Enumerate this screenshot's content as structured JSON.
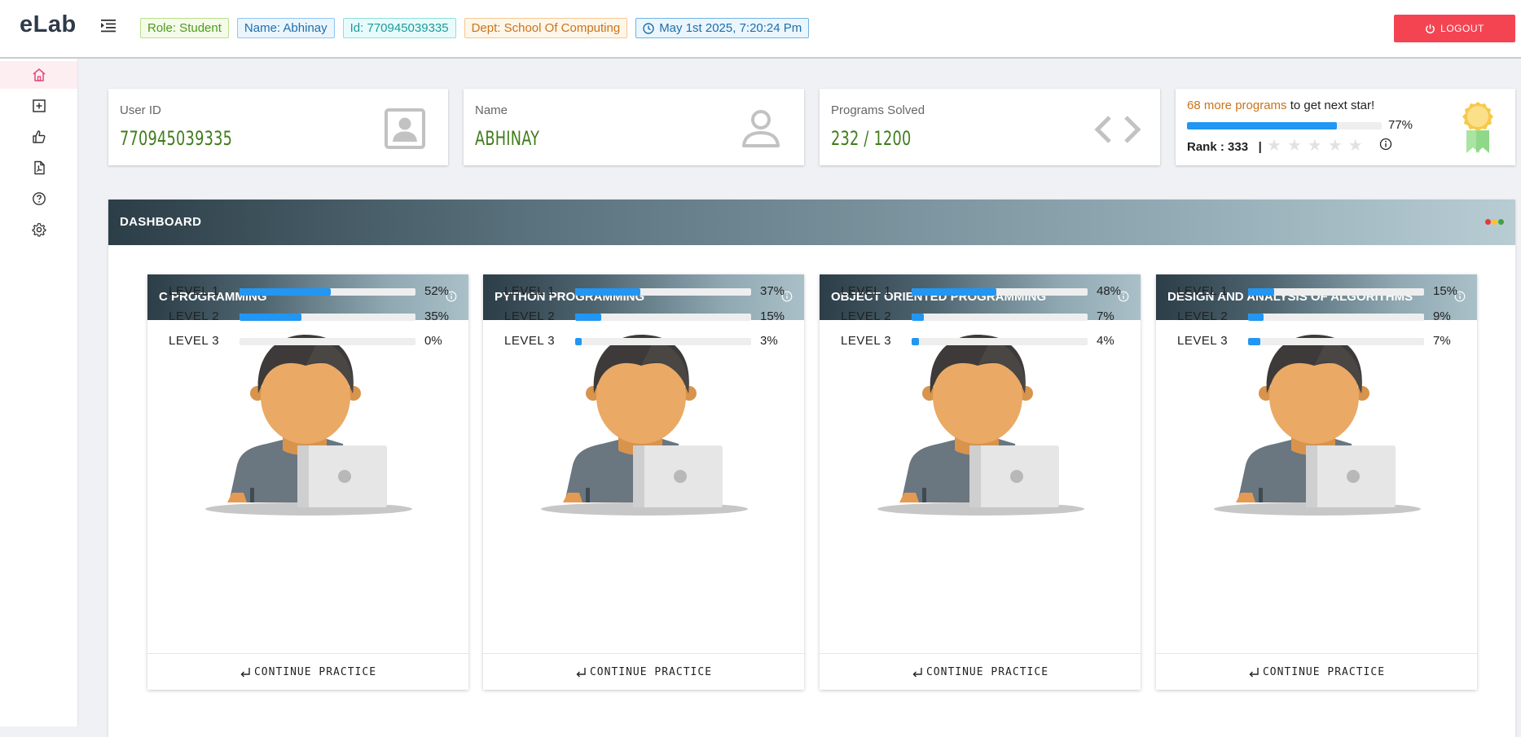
{
  "app": {
    "logo": "eLab"
  },
  "header": {
    "tags": {
      "role": "Role: Student",
      "name": "Name: Abhinay",
      "id": "Id: 770945039335",
      "dept": "Dept: School Of Computing",
      "datetime": "May 1st 2025, 7:20:24 Pm"
    },
    "logout_label": "LOGOUT"
  },
  "sidebar": {
    "items": [
      {
        "icon": "home-icon",
        "active": true
      },
      {
        "icon": "add-square-icon"
      },
      {
        "icon": "thumbs-up-icon"
      },
      {
        "icon": "pdf-file-icon"
      },
      {
        "icon": "help-circle-icon"
      },
      {
        "icon": "gear-icon"
      }
    ]
  },
  "stats": {
    "user_id": {
      "label": "User ID",
      "value": "770945039335",
      "icon": "id-card-icon"
    },
    "name": {
      "label": "Name",
      "value": "ABHINAY",
      "icon": "user-icon"
    },
    "programs": {
      "label": "Programs Solved",
      "value": "232 / 1200",
      "icon": "code-brackets-icon"
    },
    "star": {
      "highlight": "68 more programs",
      "message_rest": " to get next star!",
      "progress": 0.77,
      "percent_label": "77%",
      "rank_label": "Rank : 333",
      "separator": "|",
      "stars_filled": 0,
      "stars_total": 5,
      "icon": "medal-icon"
    }
  },
  "dashboard": {
    "title": "DASHBOARD",
    "continue_label": "CONTINUE PRACTICE",
    "courses": [
      {
        "title": "C PROGRAMMING",
        "levels": [
          {
            "name": "LEVEL 1",
            "value": 0.52,
            "label": "52%"
          },
          {
            "name": "LEVEL 2",
            "value": 0.35,
            "label": "35%"
          },
          {
            "name": "LEVEL 3",
            "value": 0.0,
            "label": "0%"
          }
        ]
      },
      {
        "title": "PYTHON PROGRAMMING",
        "levels": [
          {
            "name": "LEVEL 1",
            "value": 0.37,
            "label": "37%"
          },
          {
            "name": "LEVEL 2",
            "value": 0.15,
            "label": "15%"
          },
          {
            "name": "LEVEL 3",
            "value": 0.03,
            "label": "3%"
          }
        ]
      },
      {
        "title": "OBJECT ORIENTED PROGRAMMING",
        "levels": [
          {
            "name": "LEVEL 1",
            "value": 0.48,
            "label": "48%"
          },
          {
            "name": "LEVEL 2",
            "value": 0.07,
            "label": "7%"
          },
          {
            "name": "LEVEL 3",
            "value": 0.04,
            "label": "4%"
          }
        ]
      },
      {
        "title": "DESIGN AND ANALYSIS OF ALGORITHMS",
        "levels": [
          {
            "name": "LEVEL 1",
            "value": 0.15,
            "label": "15%"
          },
          {
            "name": "LEVEL 2",
            "value": 0.09,
            "label": "9%"
          },
          {
            "name": "LEVEL 3",
            "value": 0.07,
            "label": "7%"
          }
        ]
      }
    ]
  },
  "colors": {
    "accent_bar": "#2196f3",
    "value_green": "#3f7d1a",
    "logout_red": "#f44452",
    "highlight_orange": "#c8741a"
  }
}
